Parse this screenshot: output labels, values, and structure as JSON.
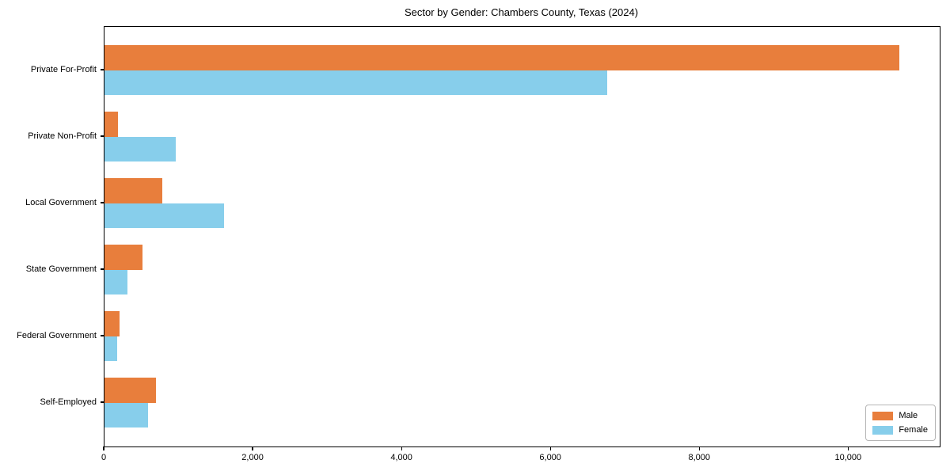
{
  "chart_data": {
    "type": "bar",
    "orientation": "horizontal",
    "title": "Sector by Gender: Chambers County, Texas (2024)",
    "categories": [
      "Private For-Profit",
      "Private Non-Profit",
      "Local Government",
      "State Government",
      "Federal Government",
      "Self-Employed"
    ],
    "series": [
      {
        "name": "Male",
        "color": "#E87E3C",
        "values": [
          10680,
          180,
          780,
          510,
          200,
          690
        ]
      },
      {
        "name": "Female",
        "color": "#87CEEB",
        "values": [
          6750,
          960,
          1610,
          310,
          165,
          580
        ]
      }
    ],
    "xlabel": "",
    "ylabel": "",
    "xlim": [
      0,
      11220
    ],
    "xticks": [
      0,
      2000,
      4000,
      6000,
      8000,
      10000
    ],
    "xtick_labels": [
      "0",
      "2,000",
      "4,000",
      "6,000",
      "8,000",
      "10,000"
    ],
    "grid": false,
    "plot_background": "#ffffff",
    "frame_color": "#000000",
    "legend_position": "lower right"
  }
}
